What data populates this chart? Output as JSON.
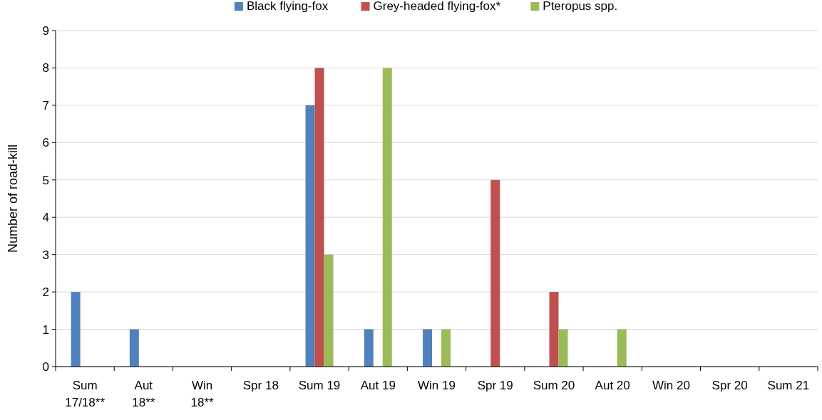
{
  "chart_data": {
    "type": "bar",
    "ylabel": "Number of road-kill",
    "categories": [
      "Sum\n17/18**",
      "Aut\n18**",
      "Win\n18**",
      "Spr 18",
      "Sum 19",
      "Aut 19",
      "Win 19",
      "Spr 19",
      "Sum 20",
      "Aut 20",
      "Win 20",
      "Spr 20",
      "Sum 21"
    ],
    "series": [
      {
        "name": "Black flying-fox",
        "color": "#4f81bd",
        "values": [
          2,
          1,
          0,
          0,
          7,
          1,
          1,
          0,
          0,
          0,
          0,
          0,
          0
        ]
      },
      {
        "name": "Grey-headed flying-fox*",
        "color": "#c0504d",
        "values": [
          0,
          0,
          0,
          0,
          8,
          0,
          0,
          5,
          2,
          0,
          0,
          0,
          0
        ]
      },
      {
        "name": "Pteropus spp.",
        "color": "#9bbb59",
        "values": [
          0,
          0,
          0,
          0,
          3,
          8,
          1,
          0,
          1,
          1,
          0,
          0,
          0
        ]
      }
    ],
    "ylim": [
      0,
      9
    ],
    "yticks": [
      0,
      1,
      2,
      3,
      4,
      5,
      6,
      7,
      8,
      9
    ],
    "grid": "y",
    "legend": "top"
  }
}
